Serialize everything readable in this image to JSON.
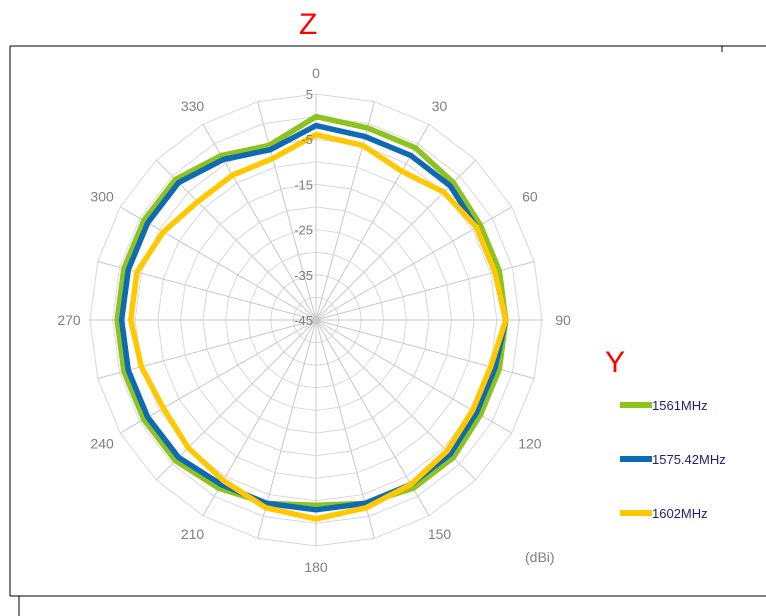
{
  "chart_data": {
    "type": "radar",
    "axis_top_label": "Z",
    "axis_right_label": "Y",
    "unit_label": "(dBi)",
    "radial_ticks": [
      "5",
      "-5",
      "-15",
      "-25",
      "-35",
      "-45"
    ],
    "rlim": [
      -45,
      5
    ],
    "angle_tick_labels": [
      "0",
      "30",
      "60",
      "90",
      "120",
      "150",
      "180",
      "210",
      "240",
      "270",
      "300",
      "330"
    ],
    "angles": [
      0,
      15,
      30,
      45,
      60,
      75,
      90,
      105,
      120,
      135,
      150,
      165,
      180,
      195,
      210,
      225,
      240,
      255,
      270,
      285,
      300,
      315,
      330,
      345
    ],
    "grid": true,
    "legend_position": "right",
    "series": [
      {
        "name": "1561MHz",
        "color": "#8dc21f",
        "values": [
          0,
          -1,
          -1,
          -2,
          -3,
          -3,
          -3,
          -3,
          -3,
          -2,
          -2,
          -3,
          -4,
          -3,
          -2,
          -1,
          -1,
          -1,
          -1,
          -1,
          -1,
          -1,
          -3,
          -5
        ]
      },
      {
        "name": "1575.42MHz",
        "color": "#0f6ab4",
        "values": [
          -2,
          -3,
          -3,
          -3,
          -4,
          -4,
          -3,
          -4,
          -4,
          -3,
          -3,
          -3,
          -3,
          -3,
          -3,
          -2,
          -2,
          -2,
          -2,
          -2,
          -2,
          -2,
          -4,
          -6
        ]
      },
      {
        "name": "1602MHz",
        "color": "#ffc800",
        "values": [
          -4,
          -5,
          -7,
          -5,
          -4,
          -4,
          -3,
          -5,
          -5,
          -4,
          -3,
          -2,
          -1,
          -2,
          -4,
          -5,
          -6,
          -5,
          -4,
          -4,
          -6,
          -8,
          -8,
          -8
        ]
      }
    ]
  }
}
